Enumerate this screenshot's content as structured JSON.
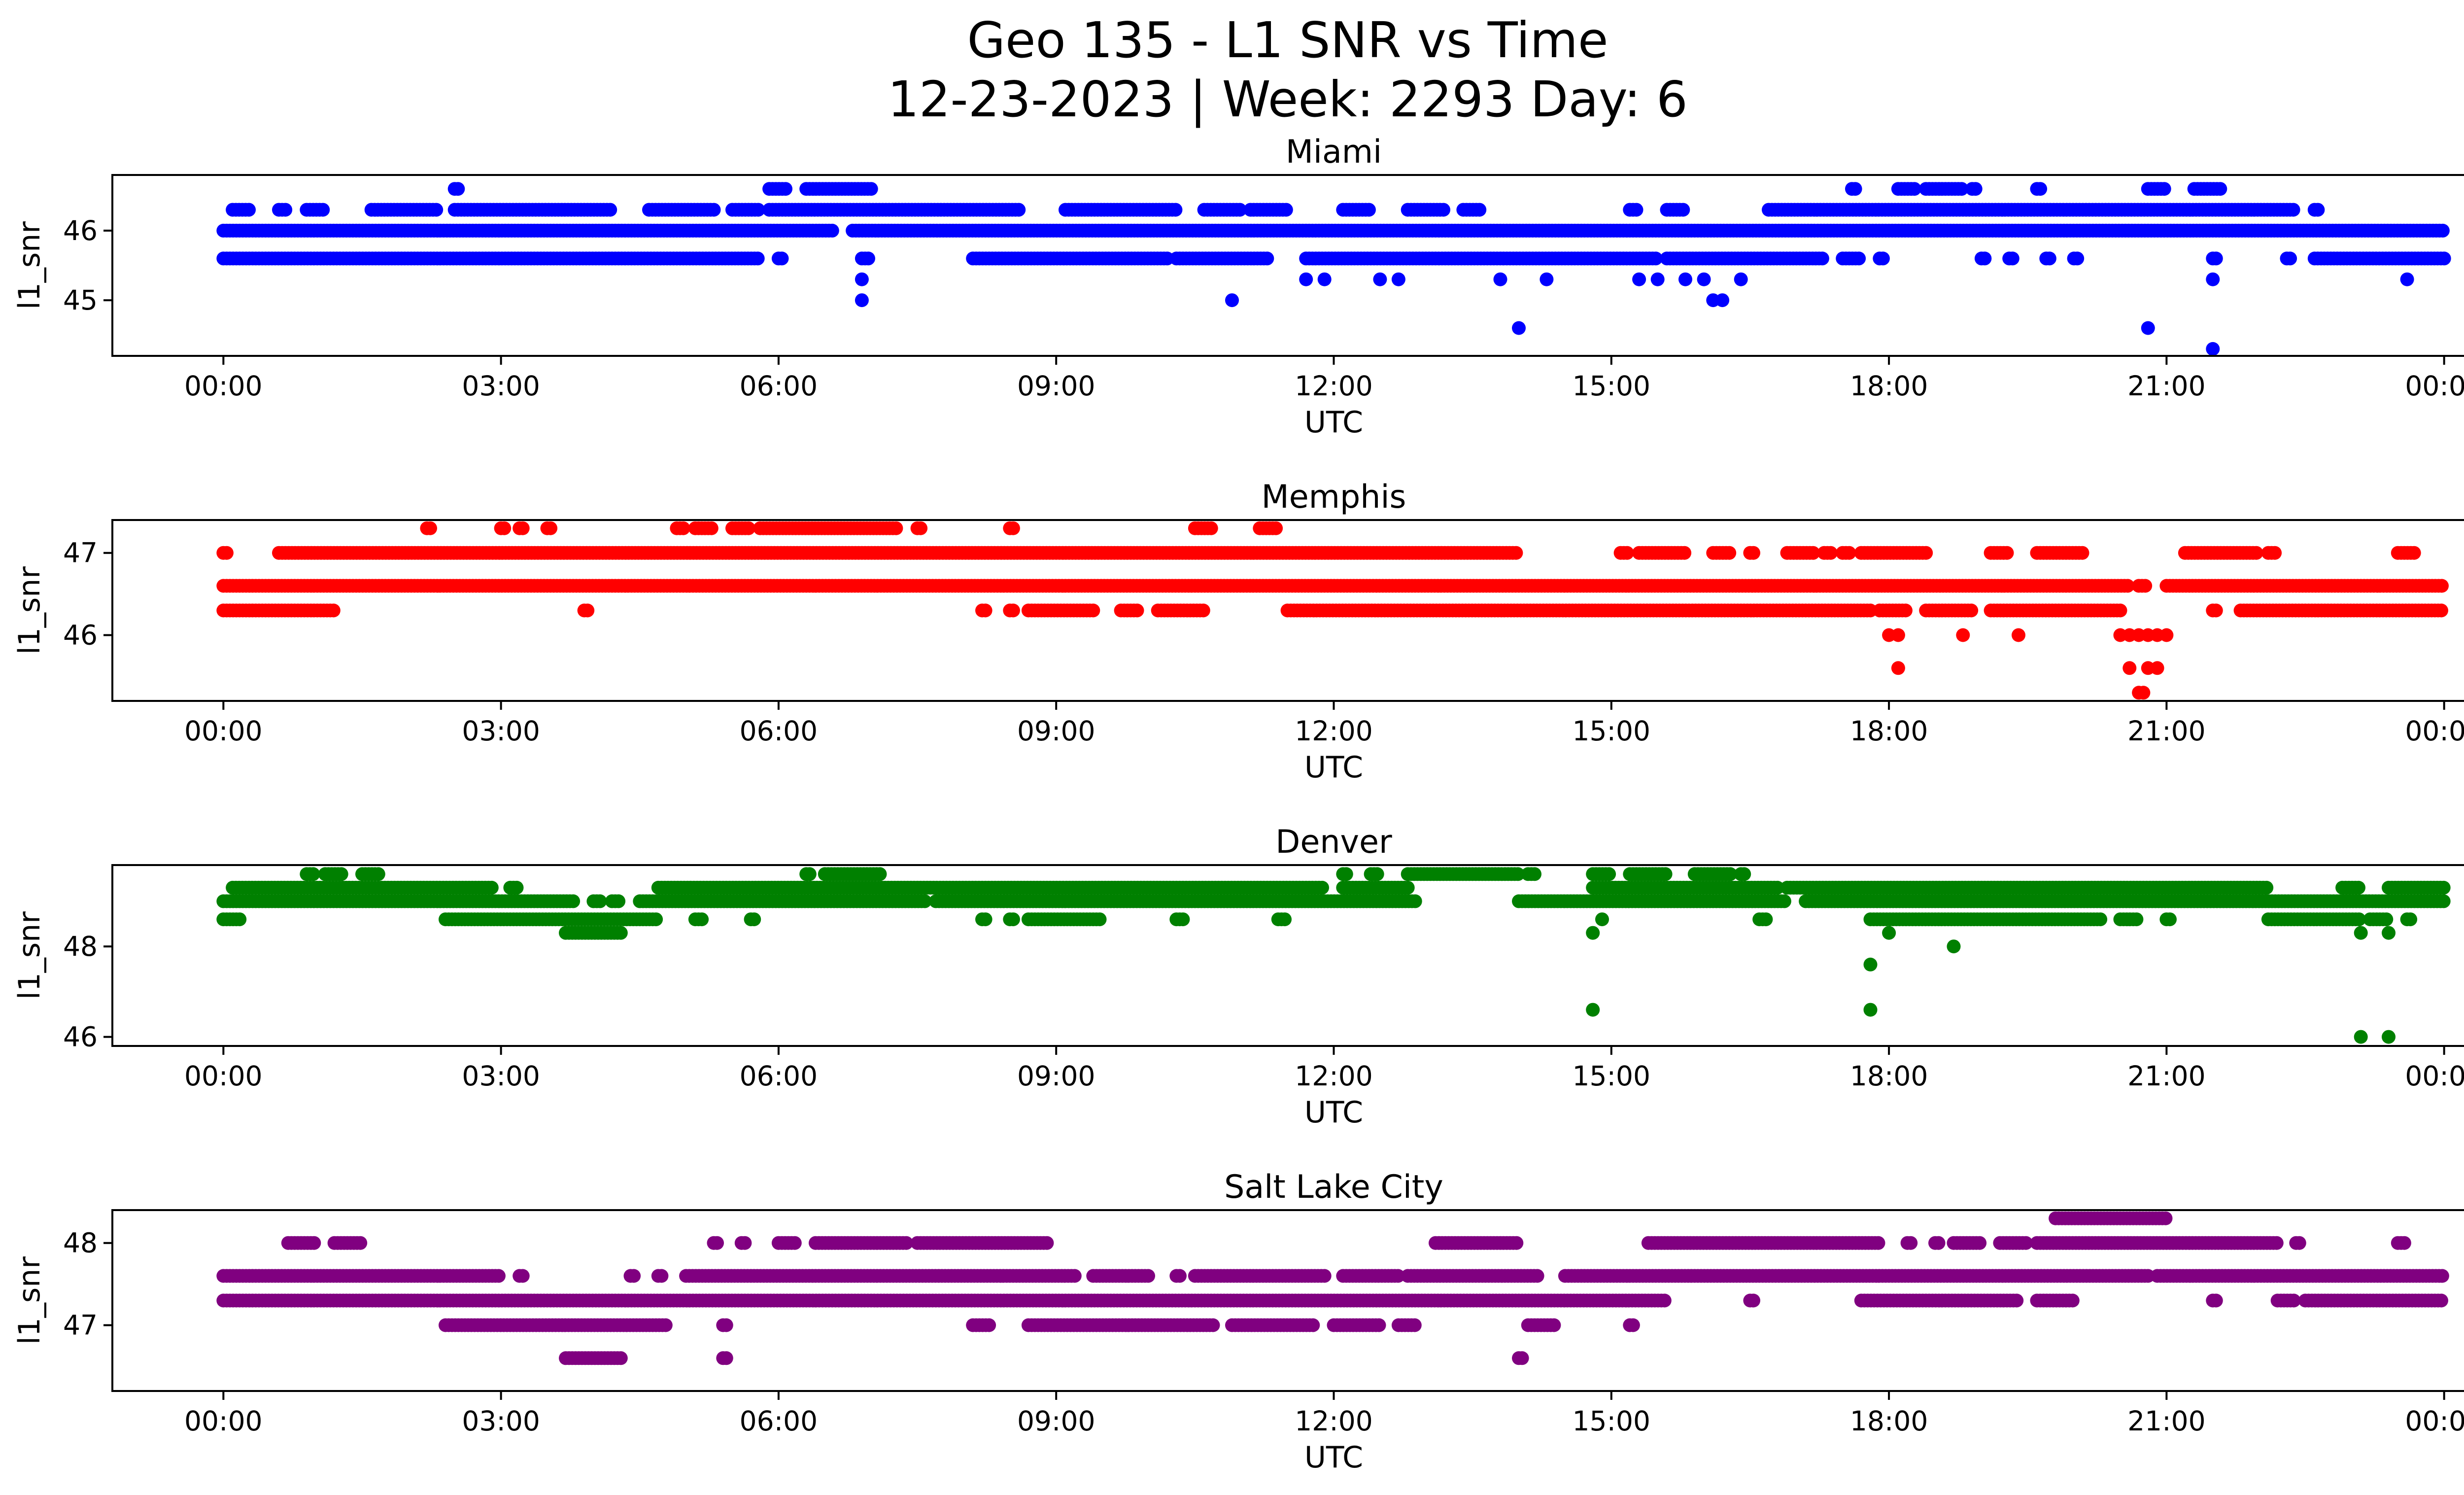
{
  "figure": {
    "title_line1": "Geo 135 - L1 SNR vs Time",
    "title_line2": "12-23-2023 | Week: 2293 Day: 6"
  },
  "chart_data": [
    {
      "type": "scatter",
      "title": "Miami",
      "xlabel": "UTC",
      "ylabel": "l1_snr",
      "color": "#0000ff",
      "xticks": [
        "00:00",
        "03:00",
        "06:00",
        "09:00",
        "12:00",
        "15:00",
        "18:00",
        "21:00",
        "00:00"
      ],
      "xlim_hours": [
        -1.2,
        25.2
      ],
      "ylim": [
        44.2,
        46.8
      ],
      "yticks": [
        45,
        46
      ],
      "levels": [
        {
          "y": 45.6,
          "segments": [
            [
              0.0,
              5.8
            ],
            [
              6.0,
              6.05
            ],
            [
              6.9,
              7.0
            ],
            [
              8.1,
              10.2
            ],
            [
              10.3,
              11.3
            ],
            [
              11.7,
              15.5
            ],
            [
              15.6,
              17.3
            ],
            [
              17.5,
              17.7
            ],
            [
              17.9,
              17.95
            ],
            [
              19.0,
              19.05
            ],
            [
              19.3,
              19.35
            ],
            [
              19.7,
              19.75
            ],
            [
              20.0,
              20.05
            ],
            [
              21.5,
              21.55
            ],
            [
              22.3,
              22.35
            ],
            [
              22.6,
              24.0
            ]
          ]
        },
        {
          "y": 46.0,
          "segments": [
            [
              0.0,
              6.6
            ],
            [
              6.8,
              24.0
            ]
          ]
        },
        {
          "y": 46.3,
          "segments": [
            [
              0.1,
              0.3
            ],
            [
              0.6,
              0.7
            ],
            [
              0.9,
              1.1
            ],
            [
              1.6,
              2.3
            ],
            [
              2.5,
              4.2
            ],
            [
              4.6,
              5.3
            ],
            [
              5.5,
              5.8
            ],
            [
              5.9,
              8.6
            ],
            [
              9.1,
              10.3
            ],
            [
              10.6,
              11.0
            ],
            [
              11.1,
              11.5
            ],
            [
              12.1,
              12.4
            ],
            [
              12.8,
              13.2
            ],
            [
              13.4,
              13.6
            ],
            [
              15.2,
              15.3
            ],
            [
              15.6,
              15.8
            ],
            [
              16.7,
              22.4
            ],
            [
              22.6,
              22.65
            ]
          ]
        },
        {
          "y": 46.6,
          "segments": [
            [
              2.5,
              2.55
            ],
            [
              5.9,
              6.1
            ],
            [
              6.3,
              7.0
            ],
            [
              17.6,
              17.65
            ],
            [
              18.1,
              18.3
            ],
            [
              18.4,
              18.8
            ],
            [
              18.9,
              18.95
            ],
            [
              19.6,
              19.65
            ],
            [
              20.8,
              21.0
            ],
            [
              21.3,
              21.6
            ]
          ]
        }
      ],
      "points": [
        [
          6.9,
          45.3
        ],
        [
          6.9,
          45.0
        ],
        [
          10.9,
          45.0
        ],
        [
          11.7,
          45.3
        ],
        [
          11.9,
          45.3
        ],
        [
          12.5,
          45.3
        ],
        [
          12.7,
          45.3
        ],
        [
          13.8,
          45.3
        ],
        [
          14.0,
          44.6
        ],
        [
          14.3,
          45.3
        ],
        [
          15.3,
          45.3
        ],
        [
          15.5,
          45.3
        ],
        [
          15.8,
          45.3
        ],
        [
          16.0,
          45.3
        ],
        [
          16.1,
          45.0
        ],
        [
          16.2,
          45.0
        ],
        [
          16.4,
          45.3
        ],
        [
          20.8,
          44.6
        ],
        [
          21.5,
          45.3
        ],
        [
          21.5,
          44.3
        ],
        [
          23.6,
          45.3
        ]
      ]
    },
    {
      "type": "scatter",
      "title": "Memphis",
      "xlabel": "UTC",
      "ylabel": "l1_snr",
      "color": "#ff0000",
      "xticks": [
        "00:00",
        "03:00",
        "06:00",
        "09:00",
        "12:00",
        "15:00",
        "18:00",
        "21:00",
        "00:00"
      ],
      "xlim_hours": [
        -1.2,
        25.2
      ],
      "ylim": [
        45.2,
        47.4
      ],
      "yticks": [
        46,
        47
      ],
      "levels": [
        {
          "y": 46.3,
          "segments": [
            [
              0.0,
              1.2
            ],
            [
              3.9,
              3.95
            ],
            [
              8.2,
              8.25
            ],
            [
              8.5,
              8.55
            ],
            [
              8.7,
              9.4
            ],
            [
              9.7,
              9.9
            ],
            [
              10.1,
              10.6
            ],
            [
              11.5,
              17.8
            ],
            [
              17.9,
              18.2
            ],
            [
              18.4,
              18.9
            ],
            [
              19.1,
              20.5
            ],
            [
              21.5,
              21.55
            ],
            [
              21.8,
              24.0
            ]
          ]
        },
        {
          "y": 46.6,
          "segments": [
            [
              0.0,
              20.6
            ],
            [
              20.7,
              20.8
            ],
            [
              21.0,
              24.0
            ]
          ]
        },
        {
          "y": 47.0,
          "segments": [
            [
              0.0,
              0.05
            ],
            [
              0.6,
              14.0
            ],
            [
              15.1,
              15.2
            ],
            [
              15.3,
              15.8
            ],
            [
              16.1,
              16.3
            ],
            [
              16.5,
              16.55
            ],
            [
              16.9,
              17.2
            ],
            [
              17.3,
              17.4
            ],
            [
              17.5,
              17.6
            ],
            [
              17.7,
              18.4
            ],
            [
              19.1,
              19.3
            ],
            [
              19.6,
              20.1
            ],
            [
              21.2,
              22.0
            ],
            [
              22.1,
              22.2
            ],
            [
              23.5,
              23.7
            ]
          ]
        },
        {
          "y": 47.3,
          "segments": [
            [
              2.2,
              2.25
            ],
            [
              3.0,
              3.05
            ],
            [
              3.2,
              3.25
            ],
            [
              3.5,
              3.55
            ],
            [
              4.9,
              5.0
            ],
            [
              5.1,
              5.3
            ],
            [
              5.5,
              5.7
            ],
            [
              5.8,
              7.3
            ],
            [
              7.5,
              7.55
            ],
            [
              8.5,
              8.55
            ],
            [
              10.5,
              10.7
            ],
            [
              11.2,
              11.4
            ]
          ]
        }
      ],
      "points": [
        [
          18.0,
          46.0
        ],
        [
          18.1,
          46.0
        ],
        [
          18.1,
          45.6
        ],
        [
          18.8,
          46.0
        ],
        [
          19.4,
          46.0
        ],
        [
          20.5,
          46.0
        ],
        [
          20.6,
          46.0
        ],
        [
          20.7,
          46.0
        ],
        [
          20.8,
          46.0
        ],
        [
          20.9,
          46.0
        ],
        [
          21.0,
          46.0
        ],
        [
          20.6,
          45.6
        ],
        [
          20.8,
          45.6
        ],
        [
          20.9,
          45.6
        ],
        [
          20.7,
          45.3
        ],
        [
          20.75,
          45.3
        ]
      ]
    },
    {
      "type": "scatter",
      "title": "Denver",
      "xlabel": "UTC",
      "ylabel": "l1_snr",
      "color": "#008000",
      "xticks": [
        "00:00",
        "03:00",
        "06:00",
        "09:00",
        "12:00",
        "15:00",
        "18:00",
        "21:00",
        "00:00"
      ],
      "xlim_hours": [
        -1.2,
        25.2
      ],
      "ylim": [
        45.8,
        49.8
      ],
      "yticks": [
        46,
        48
      ],
      "levels": [
        {
          "y": 48.6,
          "segments": [
            [
              0.0,
              0.2
            ],
            [
              2.4,
              4.7
            ],
            [
              5.1,
              5.2
            ],
            [
              5.7,
              5.75
            ],
            [
              8.2,
              8.25
            ],
            [
              8.5,
              8.55
            ],
            [
              8.7,
              9.5
            ],
            [
              10.3,
              10.4
            ],
            [
              11.4,
              11.5
            ],
            [
              16.6,
              16.7
            ],
            [
              17.8,
              20.3
            ],
            [
              20.5,
              20.7
            ],
            [
              21.0,
              21.05
            ],
            [
              22.1,
              23.1
            ],
            [
              23.2,
              23.4
            ],
            [
              23.6,
              23.65
            ]
          ]
        },
        {
          "y": 48.3,
          "segments": [
            [
              3.7,
              4.3
            ]
          ]
        },
        {
          "y": 49.0,
          "segments": [
            [
              0.0,
              3.8
            ],
            [
              4.0,
              4.1
            ],
            [
              4.2,
              4.3
            ],
            [
              4.5,
              7.6
            ],
            [
              7.7,
              12.9
            ],
            [
              14.0,
              16.9
            ],
            [
              17.1,
              24.0
            ]
          ]
        },
        {
          "y": 49.3,
          "segments": [
            [
              0.1,
              2.9
            ],
            [
              3.1,
              3.2
            ],
            [
              4.7,
              11.9
            ],
            [
              12.1,
              12.8
            ],
            [
              14.8,
              16.8
            ],
            [
              16.9,
              22.1
            ],
            [
              22.9,
              23.1
            ],
            [
              23.4,
              24.0
            ]
          ]
        },
        {
          "y": 49.6,
          "segments": [
            [
              0.9,
              1.0
            ],
            [
              1.1,
              1.3
            ],
            [
              1.5,
              1.7
            ],
            [
              6.3,
              6.35
            ],
            [
              6.5,
              7.1
            ],
            [
              12.1,
              12.15
            ],
            [
              12.4,
              12.5
            ],
            [
              12.8,
              14.0
            ],
            [
              14.1,
              14.2
            ],
            [
              14.8,
              15.0
            ],
            [
              15.2,
              15.6
            ],
            [
              15.9,
              16.3
            ],
            [
              16.4,
              16.45
            ]
          ]
        }
      ],
      "points": [
        [
          14.8,
          48.3
        ],
        [
          14.9,
          48.6
        ],
        [
          14.8,
          46.6
        ],
        [
          17.8,
          47.6
        ],
        [
          17.8,
          46.6
        ],
        [
          18.0,
          48.3
        ],
        [
          18.7,
          48.0
        ],
        [
          23.1,
          48.3
        ],
        [
          23.1,
          46.0
        ],
        [
          23.4,
          48.3
        ],
        [
          23.4,
          46.0
        ]
      ]
    },
    {
      "type": "scatter",
      "title": "Salt Lake City",
      "xlabel": "UTC",
      "ylabel": "l1_snr",
      "color": "#800080",
      "xticks": [
        "00:00",
        "03:00",
        "06:00",
        "09:00",
        "12:00",
        "15:00",
        "18:00",
        "21:00",
        "00:00"
      ],
      "xlim_hours": [
        -1.2,
        25.2
      ],
      "ylim": [
        46.2,
        48.4
      ],
      "yticks": [
        47,
        48
      ],
      "levels": [
        {
          "y": 46.6,
          "segments": [
            [
              3.7,
              4.3
            ],
            [
              5.4,
              5.45
            ],
            [
              14.0,
              14.05
            ]
          ]
        },
        {
          "y": 47.0,
          "segments": [
            [
              2.4,
              4.8
            ],
            [
              5.4,
              5.45
            ],
            [
              8.1,
              8.3
            ],
            [
              8.7,
              10.7
            ],
            [
              10.9,
              11.8
            ],
            [
              12.0,
              12.5
            ],
            [
              12.7,
              12.9
            ],
            [
              14.1,
              14.4
            ],
            [
              15.2,
              15.25
            ]
          ]
        },
        {
          "y": 47.3,
          "segments": [
            [
              0.0,
              15.6
            ],
            [
              16.5,
              16.55
            ],
            [
              17.7,
              19.4
            ],
            [
              19.6,
              20.0
            ],
            [
              21.5,
              21.55
            ],
            [
              22.2,
              22.4
            ],
            [
              22.5,
              24.0
            ]
          ]
        },
        {
          "y": 47.6,
          "segments": [
            [
              0.0,
              3.0
            ],
            [
              3.2,
              3.25
            ],
            [
              4.4,
              4.45
            ],
            [
              4.7,
              4.75
            ],
            [
              5.0,
              9.2
            ],
            [
              9.4,
              10.0
            ],
            [
              10.3,
              10.35
            ],
            [
              10.5,
              11.9
            ],
            [
              12.1,
              12.7
            ],
            [
              12.8,
              14.2
            ],
            [
              14.5,
              20.8
            ],
            [
              20.9,
              24.0
            ]
          ]
        },
        {
          "y": 48.0,
          "segments": [
            [
              0.7,
              1.0
            ],
            [
              1.2,
              1.5
            ],
            [
              5.3,
              5.35
            ],
            [
              5.6,
              5.65
            ],
            [
              6.0,
              6.2
            ],
            [
              6.4,
              7.4
            ],
            [
              7.5,
              8.9
            ],
            [
              13.1,
              14.0
            ],
            [
              15.4,
              17.9
            ],
            [
              18.2,
              18.25
            ],
            [
              18.5,
              18.55
            ],
            [
              18.7,
              19.0
            ],
            [
              19.2,
              19.5
            ],
            [
              19.6,
              22.2
            ],
            [
              22.4,
              22.45
            ],
            [
              23.5,
              23.6
            ]
          ]
        },
        {
          "y": 48.3,
          "segments": [
            [
              19.8,
              21.0
            ]
          ]
        }
      ],
      "points": []
    }
  ]
}
